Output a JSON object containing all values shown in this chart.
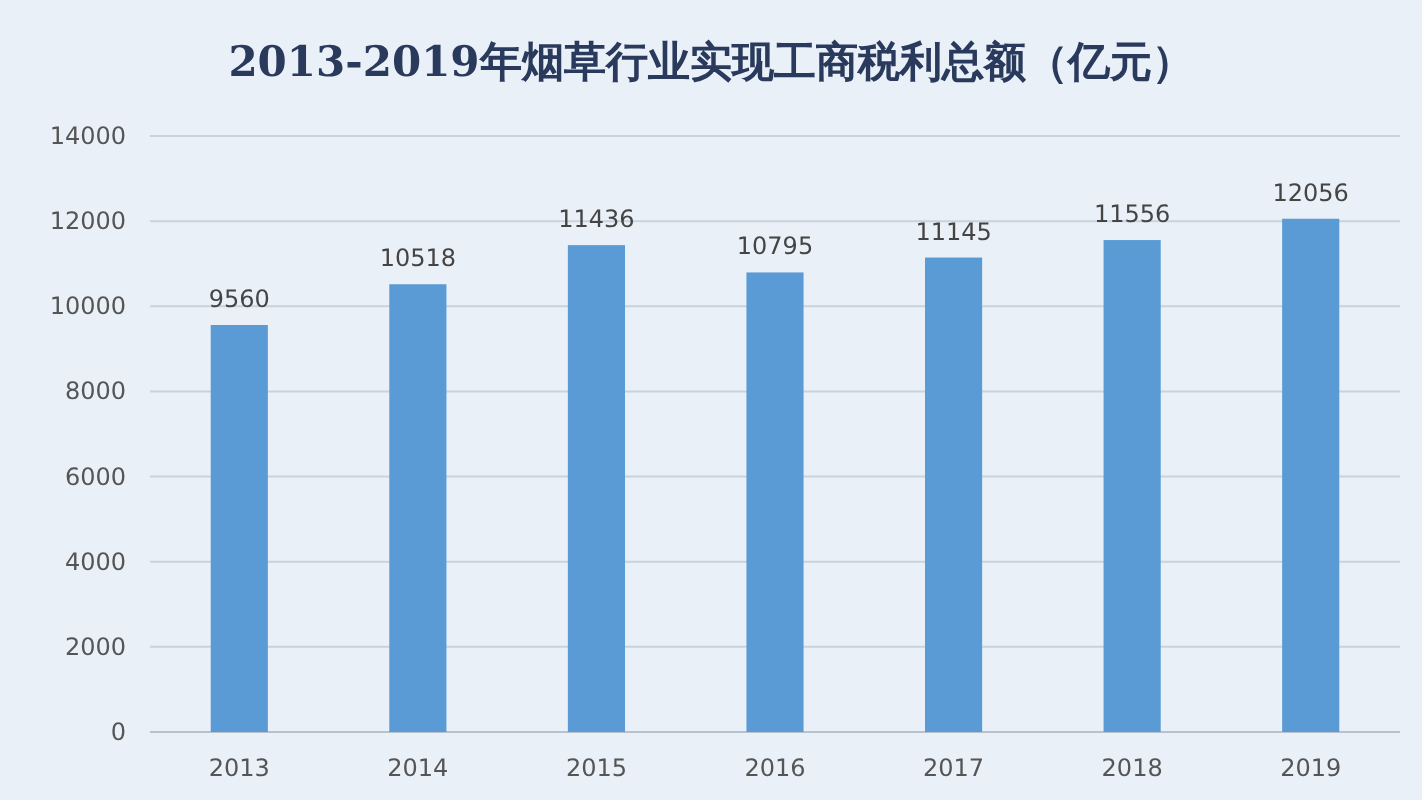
{
  "chart_data": {
    "type": "bar",
    "title": "2013-2019年烟草行业实现工商税利总额（亿元）",
    "categories": [
      "2013",
      "2014",
      "2015",
      "2016",
      "2017",
      "2018",
      "2019"
    ],
    "values": [
      9560,
      10518,
      11436,
      10795,
      11145,
      11556,
      12056
    ],
    "color": "#5b9bd5",
    "ylim": [
      0,
      14000
    ],
    "yticks": [
      0,
      2000,
      4000,
      6000,
      8000,
      10000,
      12000,
      14000
    ],
    "grid": "y",
    "data_labels": true
  }
}
